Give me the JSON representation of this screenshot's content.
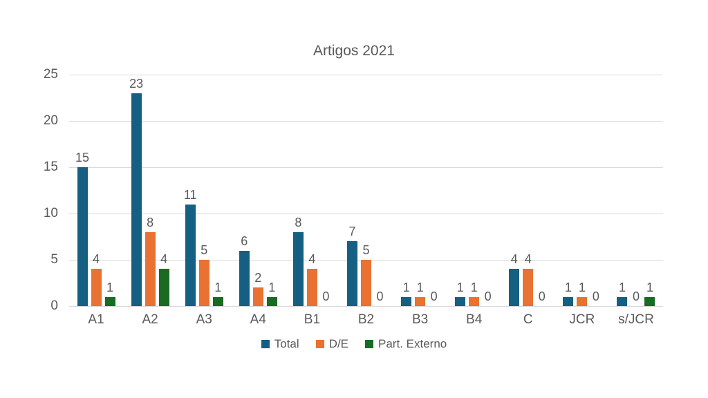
{
  "chart_data": {
    "type": "bar",
    "title": "Artigos 2021",
    "categories": [
      "A1",
      "A2",
      "A3",
      "A4",
      "B1",
      "B2",
      "B3",
      "B4",
      "C",
      "JCR",
      "s/JCR"
    ],
    "series": [
      {
        "name": "Total",
        "color": "#156082",
        "values": [
          15,
          23,
          11,
          6,
          8,
          7,
          1,
          1,
          4,
          1,
          1
        ]
      },
      {
        "name": "D/E",
        "color": "#E97132",
        "values": [
          4,
          8,
          5,
          2,
          4,
          5,
          1,
          1,
          4,
          1,
          0
        ]
      },
      {
        "name": "Part. Externo",
        "color": "#196B24",
        "values": [
          1,
          4,
          1,
          1,
          0,
          0,
          0,
          0,
          0,
          0,
          1
        ]
      }
    ],
    "ylim": [
      0,
      25
    ],
    "ytick_step": 5,
    "yticks": [
      0,
      5,
      10,
      15,
      20,
      25
    ],
    "grid": true,
    "data_labels": true,
    "legend_position": "bottom",
    "xlabel": "",
    "ylabel": ""
  },
  "colors": {
    "background": "#FFFFFF",
    "grid": "#D9D9D9",
    "text": "#595959"
  }
}
